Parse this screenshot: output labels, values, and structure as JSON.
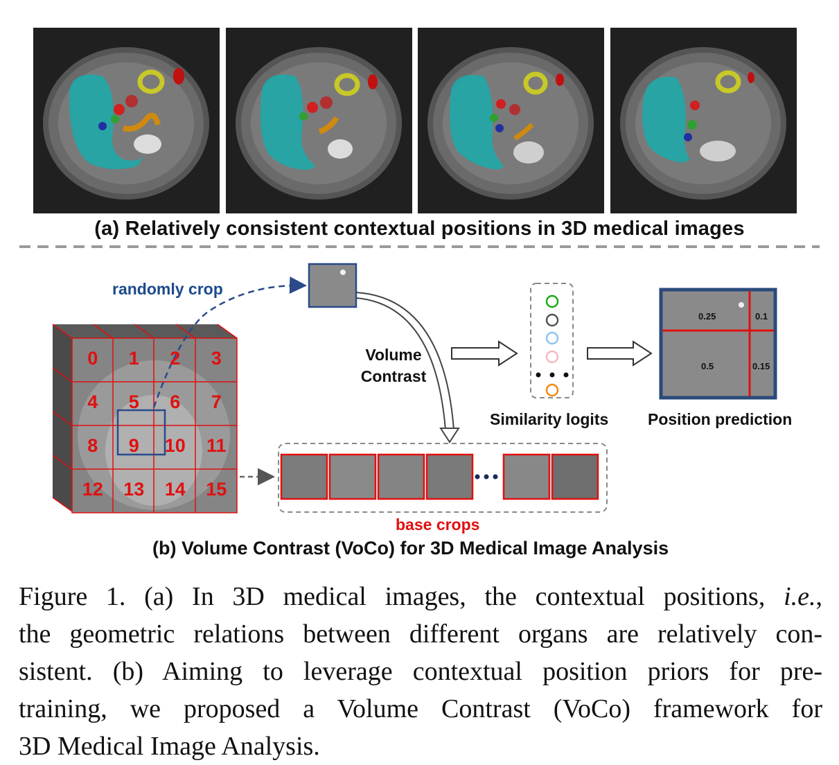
{
  "panel_a": {
    "images": [
      {
        "name": "ct-slice-1"
      },
      {
        "name": "ct-slice-2"
      },
      {
        "name": "ct-slice-3"
      },
      {
        "name": "ct-slice-4"
      }
    ],
    "caption": "(a) Relatively consistent contextual positions in 3D medical images"
  },
  "panel_b": {
    "cube_numbers": [
      "0",
      "1",
      "2",
      "3",
      "4",
      "5",
      "6",
      "7",
      "8",
      "9",
      "10",
      "11",
      "12",
      "13",
      "14",
      "15"
    ],
    "random_crop_label": "randomly crop",
    "volume_contrast_label_line1": "Volume",
    "volume_contrast_label_line2": "Contrast",
    "similarity_label": "Similarity logits",
    "position_label": "Position prediction",
    "base_crops_label": "base crops",
    "position_values": [
      "0.25",
      "0.1",
      "0.5",
      "0.15"
    ],
    "logit_colors": [
      "#1aaa1a",
      "#555555",
      "#8ec4f0",
      "#f4b8c0",
      "#f08a10"
    ],
    "caption": "(b) Volume Contrast (VoCo) for 3D Medical Image Analysis"
  },
  "figure_caption": {
    "line1_prefix": "Figure 1. (a) In 3D medical images, the contextual positions,",
    "line1_italic": "i.e.",
    "line1_suffix": ",",
    "line2": "the geometric relations between different organs are relatively con-",
    "line3": "sistent. (b) Aiming to leverage contextual position priors for pre-",
    "line4": "training, we proposed a Volume Contrast (VoCo) framework for",
    "line5": "3D Medical Image Analysis."
  }
}
